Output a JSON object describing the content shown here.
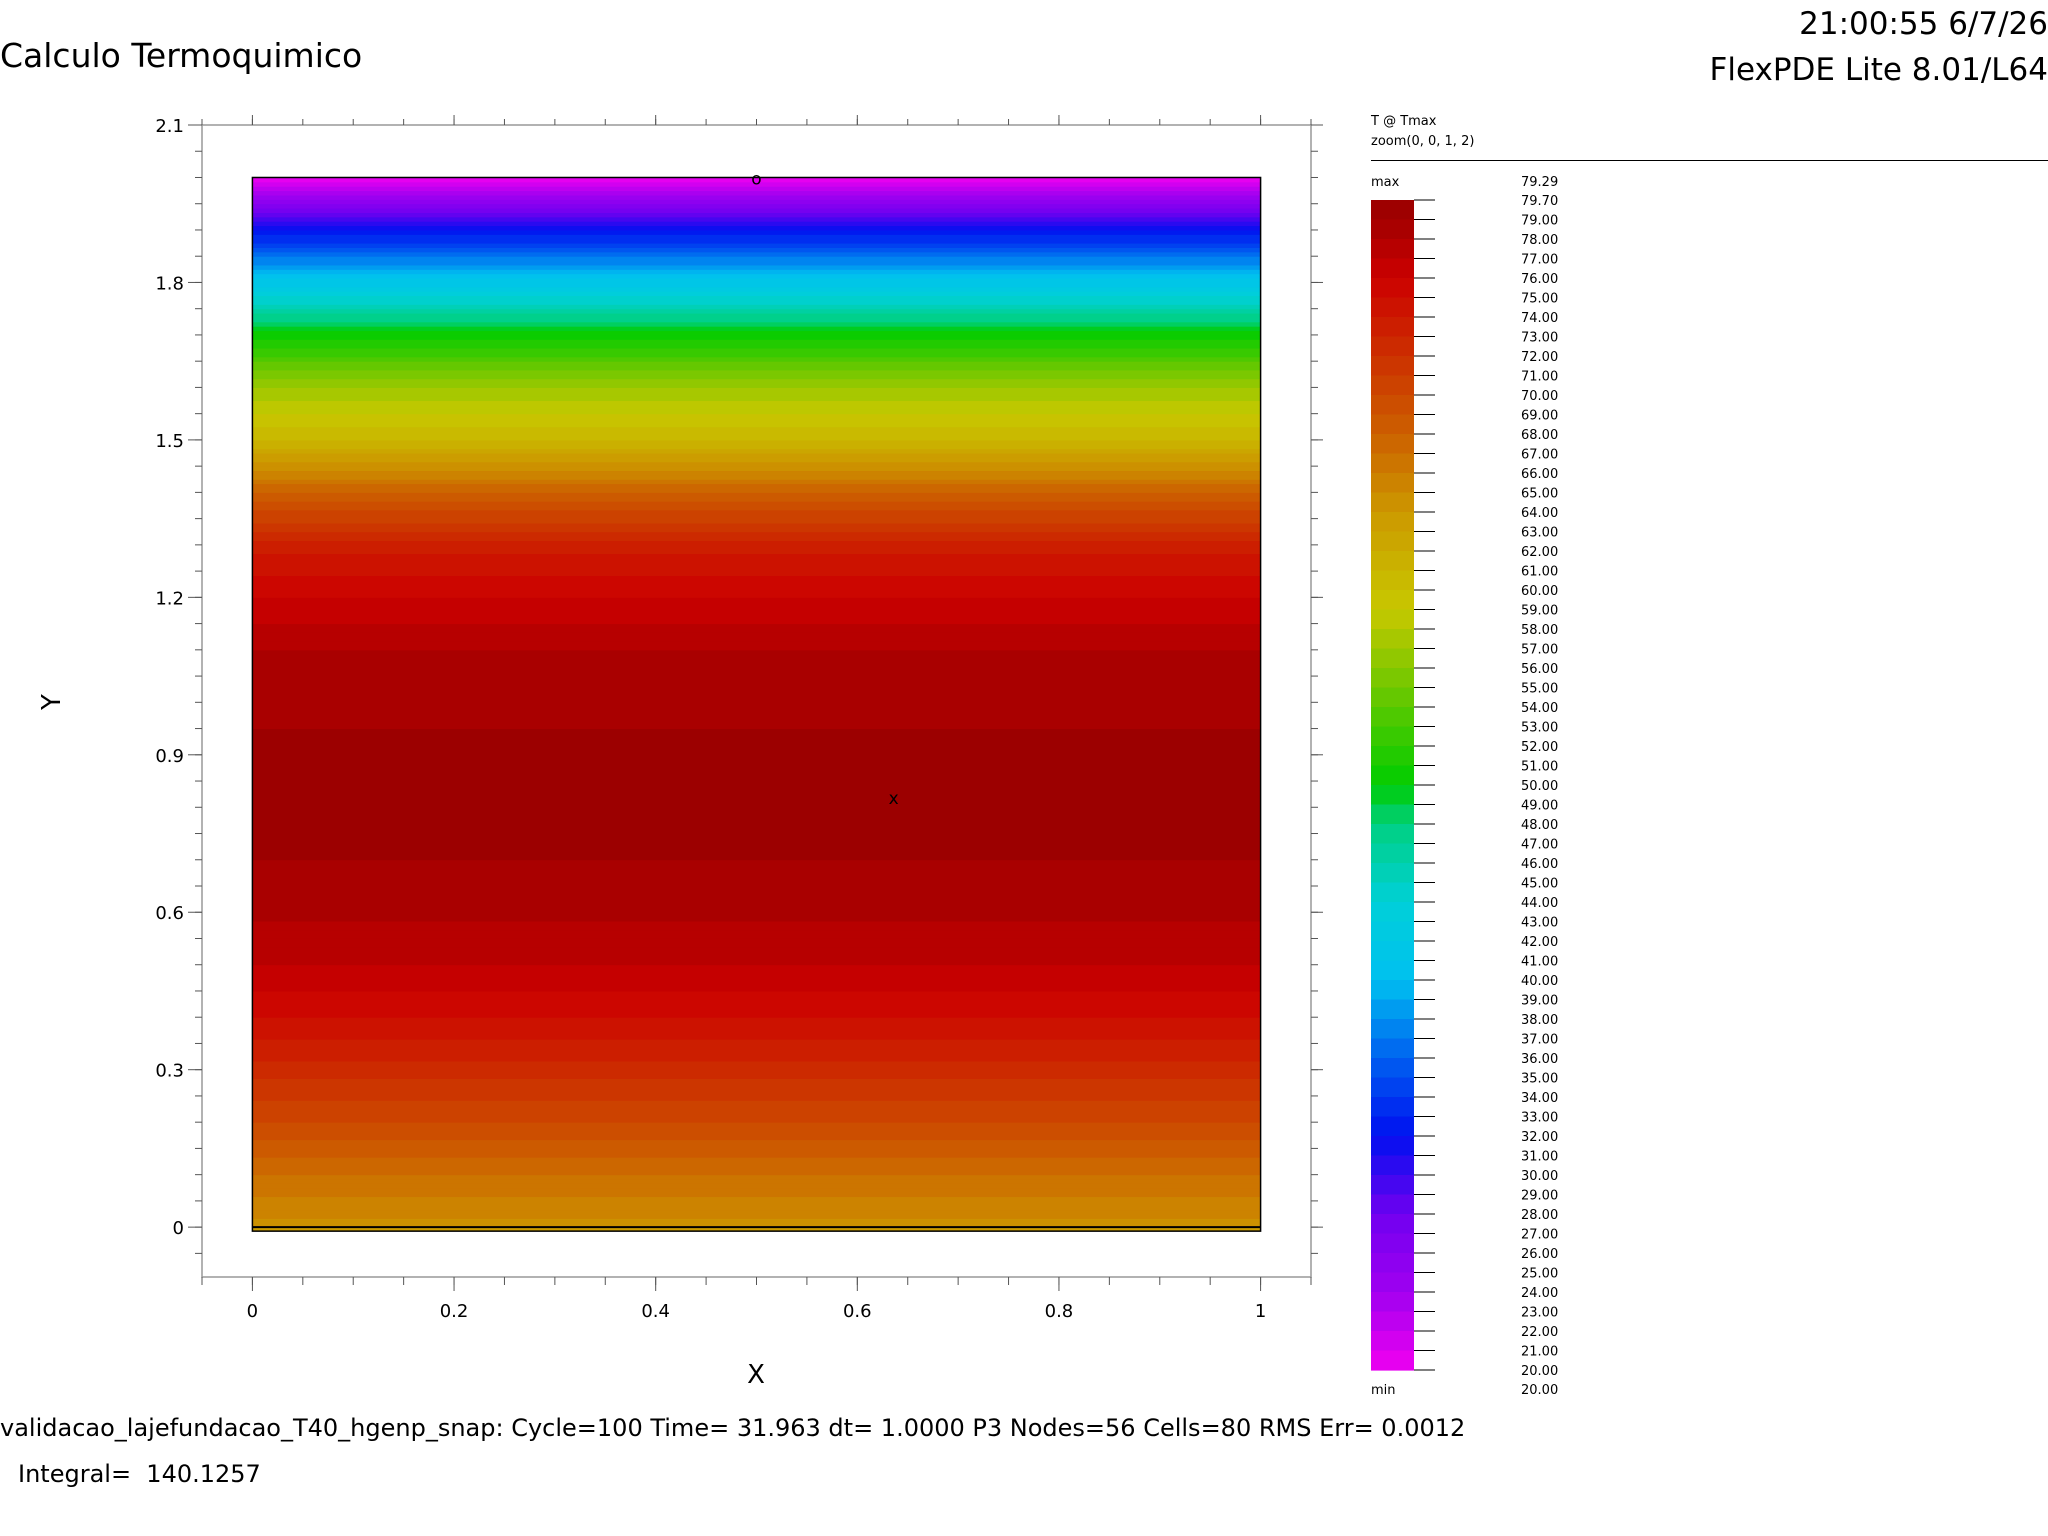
{
  "header": {
    "title": "Calculo Termoquimico",
    "timestamp": "21:00:55 6/7/26",
    "program": "FlexPDE Lite 8.01/L64"
  },
  "footer": {
    "status": "validacao_lajefundacao_T40_hgenp_snap:  Cycle=100  Time= 31.963  dt= 1.0000  P3  Nodes=56 Cells=80 RMS Err= 0.0012",
    "integral": "Integral=  140.1257"
  },
  "legend": {
    "title": "T @ Tmax",
    "zoom": "zoom(0, 0, 1, 2)",
    "max_label": "max",
    "max_value": "79.29",
    "min_label": "min",
    "min_value": "20.00",
    "levels": [
      "79.70",
      "79.00",
      "78.00",
      "77.00",
      "76.00",
      "75.00",
      "74.00",
      "73.00",
      "72.00",
      "71.00",
      "70.00",
      "69.00",
      "68.00",
      "67.00",
      "66.00",
      "65.00",
      "64.00",
      "63.00",
      "62.00",
      "61.00",
      "60.00",
      "59.00",
      "58.00",
      "57.00",
      "56.00",
      "55.00",
      "54.00",
      "53.00",
      "52.00",
      "51.00",
      "50.00",
      "49.00",
      "48.00",
      "47.00",
      "46.00",
      "45.00",
      "44.00",
      "43.00",
      "42.00",
      "41.00",
      "40.00",
      "39.00",
      "38.00",
      "37.00",
      "36.00",
      "35.00",
      "34.00",
      "33.00",
      "32.00",
      "31.00",
      "30.00",
      "29.00",
      "28.00",
      "27.00",
      "26.00",
      "25.00",
      "24.00",
      "23.00",
      "22.00",
      "21.00",
      "20.00"
    ]
  },
  "chart_data": {
    "type": "heatmap",
    "title": "Calculo Termoquimico",
    "xlabel": "X",
    "ylabel": "Y",
    "xlim": [
      -0.05,
      1.05
    ],
    "ylim": [
      -0.095,
      2.1
    ],
    "x_ticks": [
      0,
      0.2,
      0.4,
      0.6,
      0.8,
      1
    ],
    "x_tick_labels": [
      "0",
      "0.2",
      "0.4",
      "0.6",
      "0.8",
      "1"
    ],
    "y_ticks": [
      0,
      0.3,
      0.6,
      0.9,
      1.2,
      1.5,
      1.8,
      2.1
    ],
    "y_tick_labels": [
      "0",
      "0.3",
      "0.6",
      "0.9",
      "1.2",
      "1.5",
      "1.8",
      "2.1"
    ],
    "domain": {
      "x": [
        0,
        1
      ],
      "y": [
        0,
        2
      ]
    },
    "variable": "T",
    "profile_y": [
      0,
      0.1,
      0.2,
      0.3,
      0.4,
      0.5,
      0.6,
      0.7,
      0.8,
      0.9,
      1.0,
      1.1,
      1.2,
      1.3,
      1.4,
      1.5,
      1.6,
      1.7,
      1.8,
      1.9,
      2.0
    ],
    "profile_T": [
      64.5,
      67.0,
      70.0,
      72.5,
      75.0,
      77.0,
      78.2,
      79.0,
      79.29,
      79.2,
      78.8,
      78.0,
      76.0,
      73.5,
      68.0,
      61.0,
      57.0,
      50.5,
      41.5,
      32.0,
      20.0
    ],
    "markers": [
      {
        "symbol": "o",
        "x": 0.5,
        "y": 2.0,
        "meaning": "min"
      },
      {
        "symbol": "x",
        "x": 0.636,
        "y": 0.82,
        "meaning": "max"
      }
    ],
    "colormap": [
      {
        "v": 20,
        "c": "#f000f0"
      },
      {
        "v": 24,
        "c": "#a000f0"
      },
      {
        "v": 28,
        "c": "#7000f0"
      },
      {
        "v": 32,
        "c": "#0010f0"
      },
      {
        "v": 36,
        "c": "#0060f0"
      },
      {
        "v": 40,
        "c": "#00c0f0"
      },
      {
        "v": 44,
        "c": "#00d0d8"
      },
      {
        "v": 48,
        "c": "#00d080"
      },
      {
        "v": 50,
        "c": "#00cc00"
      },
      {
        "v": 55,
        "c": "#70c800"
      },
      {
        "v": 59,
        "c": "#c8c800"
      },
      {
        "v": 64,
        "c": "#cc9800"
      },
      {
        "v": 68,
        "c": "#cc6000"
      },
      {
        "v": 72,
        "c": "#cc3000"
      },
      {
        "v": 76,
        "c": "#cc0000"
      },
      {
        "v": 78,
        "c": "#b00000"
      },
      {
        "v": 79.7,
        "c": "#990000"
      }
    ]
  }
}
